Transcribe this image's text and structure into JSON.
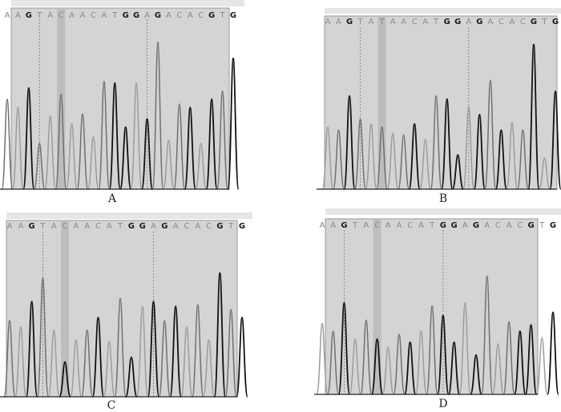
{
  "colors": {
    "area_bg": "#d4d4d4",
    "highlight": "#bdbdbd",
    "top_band": "#e6e6e6",
    "trace_dark": "#111111",
    "trace_gray": "#707070",
    "trace_light": "#9c9c9c",
    "base_gray": "#8a8a8a",
    "base_dark": "#1a1a1a"
  },
  "panels": [
    {
      "id": "A",
      "label": "A",
      "sequence": [
        "A",
        "A",
        "G",
        "T",
        "A",
        "C",
        "A",
        "A",
        "C",
        "A",
        "T",
        "G",
        "G",
        "A",
        "G",
        "A",
        "C",
        "A",
        "C",
        "G",
        "T",
        "G"
      ],
      "peaks": [
        {
          "i": 0,
          "h": 0.55,
          "c": "g"
        },
        {
          "i": 1,
          "h": 0.5,
          "c": "l"
        },
        {
          "i": 2,
          "h": 0.62,
          "c": "d"
        },
        {
          "i": 3,
          "h": 0.28,
          "c": "g"
        },
        {
          "i": 4,
          "h": 0.45,
          "c": "l"
        },
        {
          "i": 5,
          "h": 0.58,
          "c": "g"
        },
        {
          "i": 6,
          "h": 0.4,
          "c": "l"
        },
        {
          "i": 7,
          "h": 0.46,
          "c": "g"
        },
        {
          "i": 8,
          "h": 0.32,
          "c": "l"
        },
        {
          "i": 9,
          "h": 0.66,
          "c": "g"
        },
        {
          "i": 10,
          "h": 0.65,
          "c": "d"
        },
        {
          "i": 11,
          "h": 0.38,
          "c": "d"
        },
        {
          "i": 12,
          "h": 0.65,
          "c": "l"
        },
        {
          "i": 13,
          "h": 0.43,
          "c": "d"
        },
        {
          "i": 14,
          "h": 0.9,
          "c": "g"
        },
        {
          "i": 15,
          "h": 0.3,
          "c": "l"
        },
        {
          "i": 16,
          "h": 0.52,
          "c": "g"
        },
        {
          "i": 17,
          "h": 0.5,
          "c": "d"
        },
        {
          "i": 18,
          "h": 0.28,
          "c": "l"
        },
        {
          "i": 19,
          "h": 0.55,
          "c": "d"
        },
        {
          "i": 20,
          "h": 0.6,
          "c": "g"
        },
        {
          "i": 21,
          "h": 0.8,
          "c": "d"
        }
      ]
    },
    {
      "id": "B",
      "label": "B",
      "sequence": [
        "A",
        "A",
        "G",
        "T",
        "A",
        "T",
        "A",
        "A",
        "C",
        "A",
        "T",
        "G",
        "G",
        "A",
        "G",
        "A",
        "C",
        "A",
        "C",
        "G",
        "T",
        "G"
      ],
      "peaks": [
        {
          "i": 0,
          "h": 0.4,
          "c": "l"
        },
        {
          "i": 1,
          "h": 0.38,
          "c": "g"
        },
        {
          "i": 2,
          "h": 0.6,
          "c": "d"
        },
        {
          "i": 3,
          "h": 0.45,
          "c": "g"
        },
        {
          "i": 4,
          "h": 0.42,
          "c": "l"
        },
        {
          "i": 5,
          "h": 0.4,
          "c": "g"
        },
        {
          "i": 6,
          "h": 0.36,
          "c": "l"
        },
        {
          "i": 7,
          "h": 0.35,
          "c": "g"
        },
        {
          "i": 8,
          "h": 0.42,
          "c": "d"
        },
        {
          "i": 9,
          "h": 0.32,
          "c": "l"
        },
        {
          "i": 10,
          "h": 0.6,
          "c": "g"
        },
        {
          "i": 11,
          "h": 0.58,
          "c": "d"
        },
        {
          "i": 12,
          "h": 0.22,
          "c": "d"
        },
        {
          "i": 13,
          "h": 0.53,
          "c": "l"
        },
        {
          "i": 14,
          "h": 0.48,
          "c": "d"
        },
        {
          "i": 15,
          "h": 0.7,
          "c": "g"
        },
        {
          "i": 16,
          "h": 0.38,
          "c": "d"
        },
        {
          "i": 17,
          "h": 0.43,
          "c": "l"
        },
        {
          "i": 18,
          "h": 0.38,
          "c": "g"
        },
        {
          "i": 19,
          "h": 0.93,
          "c": "d"
        },
        {
          "i": 20,
          "h": 0.2,
          "c": "l"
        },
        {
          "i": 21,
          "h": 0.63,
          "c": "d"
        }
      ]
    },
    {
      "id": "C",
      "label": "C",
      "sequence": [
        "A",
        "A",
        "G",
        "T",
        "A",
        "C",
        "A",
        "A",
        "C",
        "A",
        "T",
        "G",
        "G",
        "A",
        "G",
        "A",
        "C",
        "A",
        "C",
        "G",
        "T",
        "G"
      ],
      "peaks": [
        {
          "i": 0,
          "h": 0.48,
          "c": "g"
        },
        {
          "i": 1,
          "h": 0.44,
          "c": "l"
        },
        {
          "i": 2,
          "h": 0.6,
          "c": "d"
        },
        {
          "i": 3,
          "h": 0.75,
          "c": "g"
        },
        {
          "i": 4,
          "h": 0.42,
          "c": "l"
        },
        {
          "i": 5,
          "h": 0.22,
          "c": "d"
        },
        {
          "i": 6,
          "h": 0.36,
          "c": "l"
        },
        {
          "i": 7,
          "h": 0.42,
          "c": "g"
        },
        {
          "i": 8,
          "h": 0.5,
          "c": "d"
        },
        {
          "i": 9,
          "h": 0.35,
          "c": "l"
        },
        {
          "i": 10,
          "h": 0.62,
          "c": "g"
        },
        {
          "i": 11,
          "h": 0.25,
          "c": "d"
        },
        {
          "i": 12,
          "h": 0.57,
          "c": "l"
        },
        {
          "i": 13,
          "h": 0.6,
          "c": "d"
        },
        {
          "i": 14,
          "h": 0.48,
          "c": "g"
        },
        {
          "i": 15,
          "h": 0.57,
          "c": "d"
        },
        {
          "i": 16,
          "h": 0.44,
          "c": "l"
        },
        {
          "i": 17,
          "h": 0.58,
          "c": "g"
        },
        {
          "i": 18,
          "h": 0.36,
          "c": "l"
        },
        {
          "i": 19,
          "h": 0.78,
          "c": "d"
        },
        {
          "i": 20,
          "h": 0.55,
          "c": "g"
        },
        {
          "i": 21,
          "h": 0.5,
          "c": "d"
        }
      ]
    },
    {
      "id": "D",
      "label": "D",
      "sequence": [
        "A",
        "A",
        "G",
        "T",
        "A",
        "C",
        "A",
        "A",
        "C",
        "A",
        "T",
        "G",
        "G",
        "A",
        "G",
        "A",
        "C",
        "A",
        "C",
        "G",
        "T",
        "G"
      ],
      "peaks": [
        {
          "i": 0,
          "h": 0.45,
          "c": "l"
        },
        {
          "i": 1,
          "h": 0.4,
          "c": "g"
        },
        {
          "i": 2,
          "h": 0.58,
          "c": "d"
        },
        {
          "i": 3,
          "h": 0.35,
          "c": "l"
        },
        {
          "i": 4,
          "h": 0.47,
          "c": "g"
        },
        {
          "i": 5,
          "h": 0.35,
          "c": "d"
        },
        {
          "i": 6,
          "h": 0.3,
          "c": "l"
        },
        {
          "i": 7,
          "h": 0.38,
          "c": "g"
        },
        {
          "i": 8,
          "h": 0.33,
          "c": "d"
        },
        {
          "i": 9,
          "h": 0.4,
          "c": "l"
        },
        {
          "i": 10,
          "h": 0.56,
          "c": "g"
        },
        {
          "i": 11,
          "h": 0.5,
          "c": "d"
        },
        {
          "i": 12,
          "h": 0.33,
          "c": "d"
        },
        {
          "i": 13,
          "h": 0.58,
          "c": "l"
        },
        {
          "i": 14,
          "h": 0.25,
          "c": "d"
        },
        {
          "i": 15,
          "h": 0.75,
          "c": "g"
        },
        {
          "i": 16,
          "h": 0.32,
          "c": "l"
        },
        {
          "i": 17,
          "h": 0.46,
          "c": "g"
        },
        {
          "i": 18,
          "h": 0.4,
          "c": "d"
        },
        {
          "i": 19,
          "h": 0.44,
          "c": "d"
        },
        {
          "i": 20,
          "h": 0.36,
          "c": "l"
        },
        {
          "i": 21,
          "h": 0.52,
          "c": "d"
        }
      ]
    }
  ]
}
